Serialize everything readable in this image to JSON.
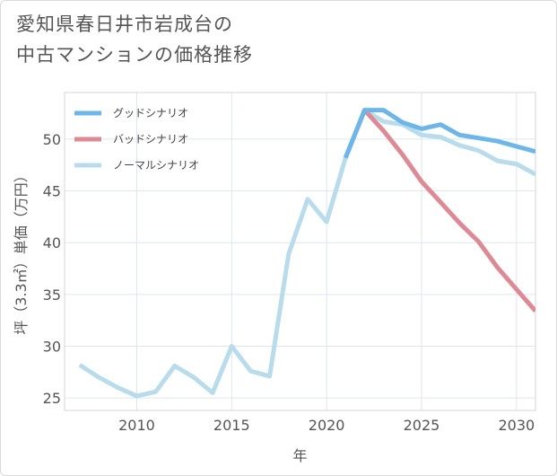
{
  "chart_data": {
    "type": "line",
    "title": "愛知県春日井市岩成台の\n中古マンションの価格推移",
    "xlabel": "年",
    "ylabel": "坪（3.3㎡）単価（万円）",
    "xlim": [
      2006.2,
      2031
    ],
    "ylim": [
      23.8,
      54.5
    ],
    "x_ticks": [
      2010,
      2015,
      2020,
      2025,
      2030
    ],
    "y_ticks": [
      25,
      30,
      35,
      40,
      45,
      50
    ],
    "grid": true,
    "legend_position": "top-left",
    "series": [
      {
        "name": "グッドシナリオ",
        "color": "#6cb6ea",
        "x": [
          2021,
          2022,
          2023,
          2024,
          2025,
          2026,
          2027,
          2028,
          2029,
          2030,
          2031
        ],
        "y": [
          48.2,
          52.8,
          52.8,
          51.6,
          51.0,
          51.4,
          50.4,
          50.1,
          49.8,
          49.3,
          48.8
        ]
      },
      {
        "name": "バッドシナリオ",
        "color": "#dd8a94",
        "x": [
          2021,
          2022,
          2023,
          2024,
          2025,
          2026,
          2027,
          2028,
          2029,
          2030,
          2031
        ],
        "y": [
          48.2,
          52.8,
          50.8,
          48.5,
          45.9,
          43.9,
          41.9,
          40.1,
          37.6,
          35.5,
          33.4
        ]
      },
      {
        "name": "ノーマルシナリオ",
        "color": "#b8dcec",
        "x": [
          2007,
          2008,
          2009,
          2010,
          2011,
          2012,
          2013,
          2014,
          2015,
          2016,
          2017,
          2018,
          2019,
          2020,
          2021,
          2022,
          2023,
          2024,
          2025,
          2026,
          2027,
          2028,
          2029,
          2030,
          2031
        ],
        "y": [
          28.2,
          27.0,
          26.0,
          25.2,
          25.6,
          28.1,
          27.0,
          25.5,
          30.0,
          27.6,
          27.1,
          38.9,
          44.2,
          42.0,
          48.2,
          52.8,
          51.7,
          51.4,
          50.4,
          50.2,
          49.4,
          48.9,
          47.9,
          47.6,
          46.6
        ]
      }
    ]
  }
}
